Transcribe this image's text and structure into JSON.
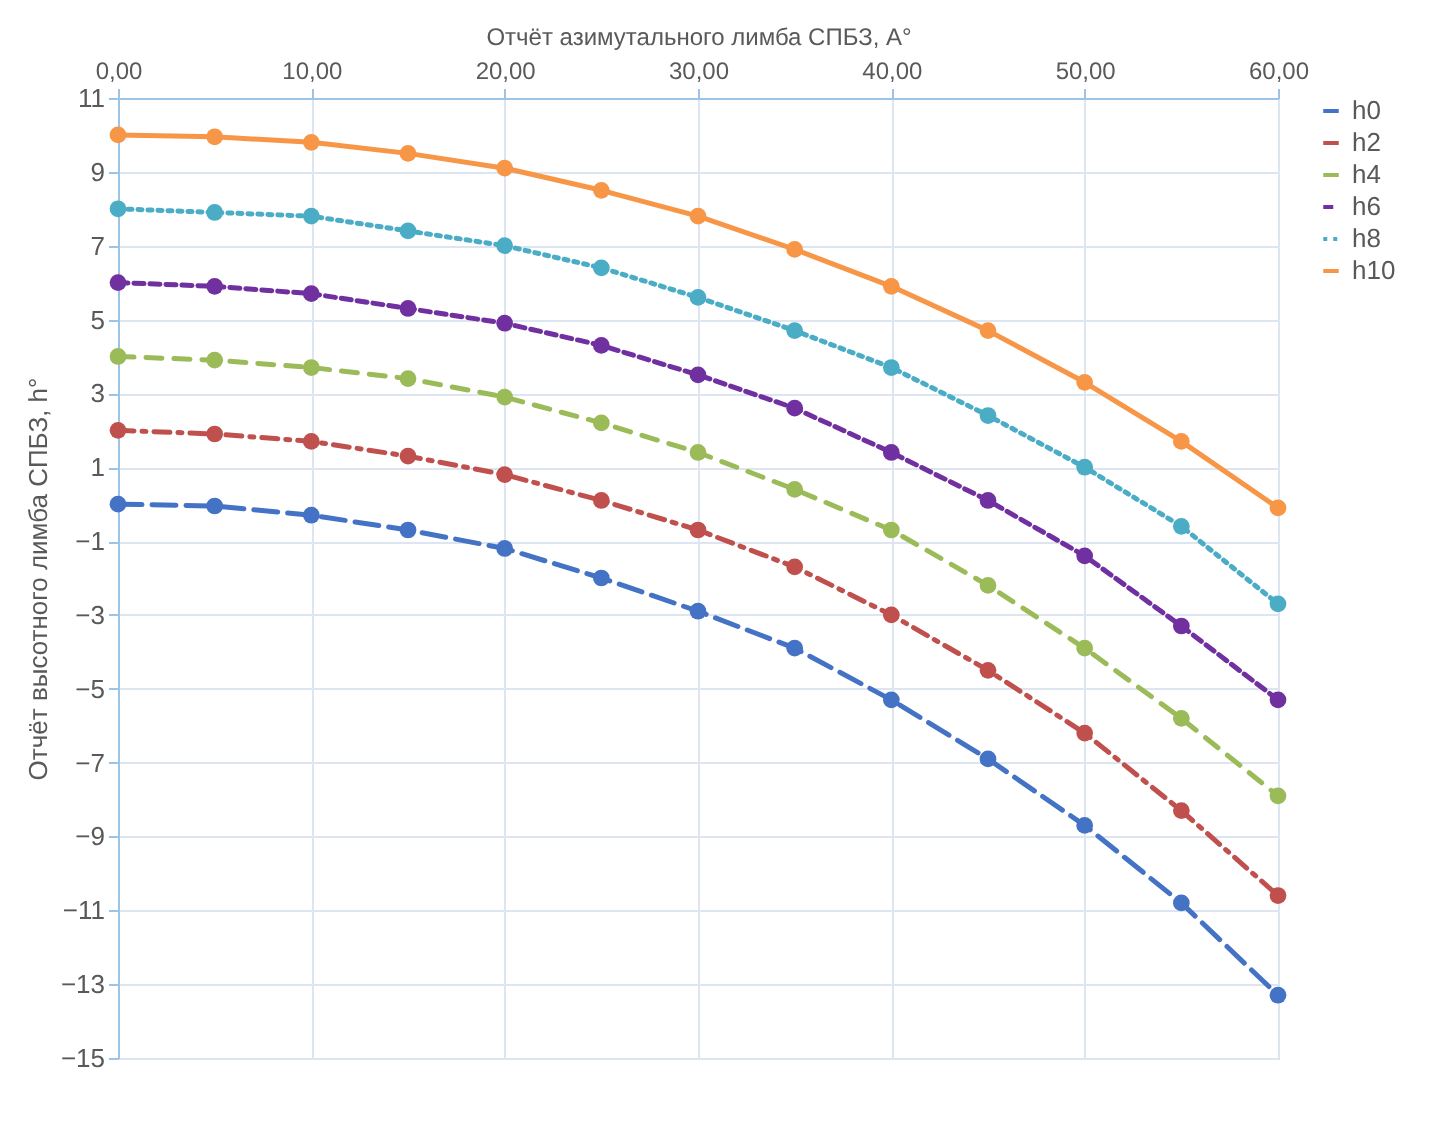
{
  "chart_data": {
    "type": "line",
    "xlabel": "Отчёт азимутального лимба СПБЗ, A°",
    "ylabel": "Отчёт высотного лимба СПБЗ, h°",
    "x": [
      0,
      5,
      10,
      15,
      20,
      25,
      30,
      35,
      40,
      45,
      50,
      55,
      60
    ],
    "xlim": [
      0,
      60
    ],
    "xticks": [
      {
        "value": 0,
        "label": "0,00"
      },
      {
        "value": 10,
        "label": "10,00"
      },
      {
        "value": 20,
        "label": "20,00"
      },
      {
        "value": 30,
        "label": "30,00"
      },
      {
        "value": 40,
        "label": "40,00"
      },
      {
        "value": 50,
        "label": "50,00"
      },
      {
        "value": 60,
        "label": "60,00"
      }
    ],
    "ylim": [
      -15,
      11
    ],
    "yticks": [
      -15,
      -13,
      -11,
      -9,
      -7,
      -5,
      -3,
      -1,
      1,
      3,
      5,
      7,
      9,
      11
    ],
    "grid": true,
    "legend": "right",
    "marker": "circle",
    "series": [
      {
        "name": "h0",
        "color": "#4472c4",
        "line_style": "dashed",
        "values": [
          0,
          -0.05,
          -0.3,
          -0.7,
          -1.2,
          -2.0,
          -2.9,
          -3.9,
          -5.3,
          -6.9,
          -8.7,
          -10.8,
          -13.3
        ]
      },
      {
        "name": "h2",
        "color": "#c0504d",
        "line_style": "dashed",
        "values": [
          2,
          1.9,
          1.7,
          1.3,
          0.8,
          0.1,
          -0.7,
          -1.7,
          -3.0,
          -4.5,
          -6.2,
          -8.3,
          -10.6
        ]
      },
      {
        "name": "h4",
        "color": "#9bbb59",
        "line_style": "dashed",
        "values": [
          4,
          3.9,
          3.7,
          3.4,
          2.9,
          2.2,
          1.4,
          0.4,
          -0.7,
          -2.2,
          -3.9,
          -5.8,
          -7.9
        ]
      },
      {
        "name": "h6",
        "color": "#7030a0",
        "line_style": "dashed",
        "values": [
          6,
          5.9,
          5.7,
          5.3,
          4.9,
          4.3,
          3.5,
          2.6,
          1.4,
          0.1,
          -1.4,
          -3.3,
          -5.3
        ]
      },
      {
        "name": "h8",
        "color": "#4bacc6",
        "line_style": "dotted",
        "values": [
          8,
          7.9,
          7.8,
          7.4,
          7.0,
          6.4,
          5.6,
          4.7,
          3.7,
          2.4,
          1.0,
          -0.6,
          -2.7
        ]
      },
      {
        "name": "h10",
        "color": "#f79646",
        "line_style": "solid",
        "values": [
          10,
          9.95,
          9.8,
          9.5,
          9.1,
          8.5,
          7.8,
          6.9,
          5.9,
          4.7,
          3.3,
          1.7,
          -0.1
        ]
      }
    ]
  }
}
